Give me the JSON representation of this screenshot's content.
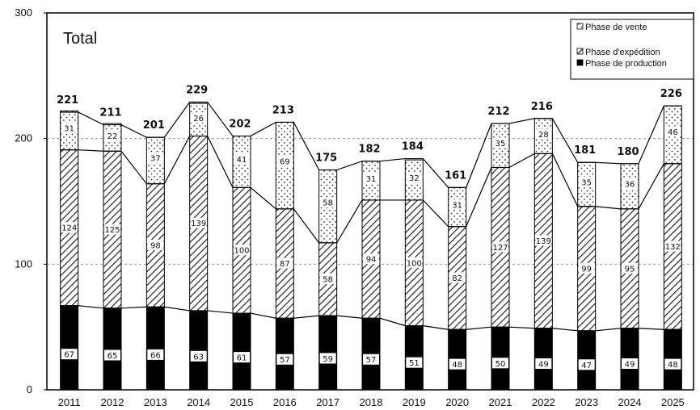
{
  "chart_data": {
    "type": "bar",
    "stacked": true,
    "panel_label": "Total",
    "categories": [
      "2011",
      "2012",
      "2013",
      "2014",
      "2015",
      "2016",
      "2017",
      "2018",
      "2019",
      "2020",
      "2021",
      "2022",
      "2023",
      "2024",
      "2025"
    ],
    "series": [
      {
        "name": "Phase de production",
        "pattern": "solid-black",
        "values": [
          67,
          65,
          66,
          63,
          61,
          57,
          59,
          57,
          51,
          48,
          50,
          49,
          47,
          49,
          48
        ]
      },
      {
        "name": "Phase d'expédition",
        "pattern": "diagonal-hatch",
        "values": [
          124,
          125,
          98,
          139,
          100,
          87,
          58,
          94,
          100,
          82,
          127,
          139,
          99,
          95,
          132
        ]
      },
      {
        "name": "Phase de vente",
        "pattern": "dotted",
        "values": [
          31,
          22,
          37,
          26,
          41,
          69,
          58,
          31,
          32,
          31,
          35,
          28,
          35,
          36,
          46
        ]
      }
    ],
    "totals": [
      221,
      211,
      201,
      229,
      202,
      213,
      175,
      182,
      184,
      161,
      212,
      216,
      181,
      180,
      226
    ],
    "ylim": [
      0,
      300
    ],
    "yticks": [
      0,
      100,
      200,
      300
    ],
    "grid": "dashed horizontal at 100 and 200",
    "legend_position": "top-right",
    "legend_order": [
      "Phase de vente",
      "Phase d'expédition",
      "Phase de production"
    ],
    "colors": {
      "production": "#000000",
      "hatch": "#222222",
      "dots": "#333333",
      "frame": "#000000",
      "grid": "#9a9a9a"
    }
  }
}
